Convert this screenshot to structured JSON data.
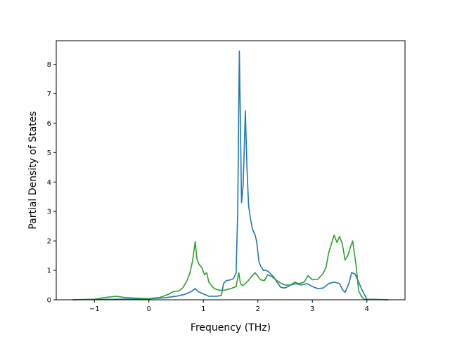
{
  "chart_data": {
    "type": "line",
    "title": "",
    "xlabel": "Frequency (THz)",
    "ylabel": "Partial Density of States",
    "xlim": [
      -1.7,
      4.7
    ],
    "ylim": [
      0,
      8.8
    ],
    "xticks": [
      -1,
      0,
      1,
      2,
      3,
      4
    ],
    "yticks": [
      0,
      1,
      2,
      3,
      4,
      5,
      6,
      7,
      8
    ],
    "grid": false,
    "legend": "none",
    "series": [
      {
        "color": "#1f77b4",
        "points": [
          [
            -1.4,
            0
          ],
          [
            -0.9,
            0.01
          ],
          [
            -0.5,
            0.02
          ],
          [
            0,
            0.03
          ],
          [
            0.3,
            0.07
          ],
          [
            0.5,
            0.12
          ],
          [
            0.65,
            0.18
          ],
          [
            0.78,
            0.28
          ],
          [
            0.85,
            0.38
          ],
          [
            0.9,
            0.28
          ],
          [
            1.0,
            0.2
          ],
          [
            1.1,
            0.12
          ],
          [
            1.25,
            0.12
          ],
          [
            1.33,
            0.15
          ],
          [
            1.37,
            0.55
          ],
          [
            1.42,
            0.65
          ],
          [
            1.5,
            0.68
          ],
          [
            1.55,
            0.72
          ],
          [
            1.6,
            0.9
          ],
          [
            1.63,
            3.0
          ],
          [
            1.66,
            8.45
          ],
          [
            1.68,
            6.0
          ],
          [
            1.7,
            3.3
          ],
          [
            1.73,
            3.9
          ],
          [
            1.77,
            6.42
          ],
          [
            1.8,
            4.5
          ],
          [
            1.83,
            3.2
          ],
          [
            1.86,
            2.8
          ],
          [
            1.9,
            2.4
          ],
          [
            1.95,
            2.2
          ],
          [
            1.98,
            1.95
          ],
          [
            2.02,
            1.3
          ],
          [
            2.05,
            1.15
          ],
          [
            2.1,
            1.0
          ],
          [
            2.15,
            1.0
          ],
          [
            2.2,
            0.95
          ],
          [
            2.25,
            0.85
          ],
          [
            2.3,
            0.75
          ],
          [
            2.35,
            0.6
          ],
          [
            2.42,
            0.42
          ],
          [
            2.5,
            0.4
          ],
          [
            2.55,
            0.45
          ],
          [
            2.6,
            0.5
          ],
          [
            2.7,
            0.55
          ],
          [
            2.8,
            0.5
          ],
          [
            2.9,
            0.55
          ],
          [
            3.0,
            0.45
          ],
          [
            3.1,
            0.38
          ],
          [
            3.2,
            0.4
          ],
          [
            3.3,
            0.55
          ],
          [
            3.4,
            0.6
          ],
          [
            3.5,
            0.55
          ],
          [
            3.55,
            0.35
          ],
          [
            3.6,
            0.25
          ],
          [
            3.67,
            0.55
          ],
          [
            3.72,
            0.92
          ],
          [
            3.78,
            0.88
          ],
          [
            3.85,
            0.6
          ],
          [
            3.92,
            0.3
          ],
          [
            4.0,
            0.02
          ],
          [
            4.4,
            0
          ]
        ]
      },
      {
        "color": "#2ca02c",
        "points": [
          [
            -1.4,
            0
          ],
          [
            -1.0,
            0.02
          ],
          [
            -0.9,
            0.05
          ],
          [
            -0.8,
            0.08
          ],
          [
            -0.6,
            0.12
          ],
          [
            -0.45,
            0.08
          ],
          [
            -0.3,
            0.06
          ],
          [
            0,
            0.04
          ],
          [
            0.2,
            0.08
          ],
          [
            0.35,
            0.18
          ],
          [
            0.45,
            0.28
          ],
          [
            0.55,
            0.3
          ],
          [
            0.62,
            0.4
          ],
          [
            0.7,
            0.65
          ],
          [
            0.75,
            0.9
          ],
          [
            0.8,
            1.3
          ],
          [
            0.85,
            1.98
          ],
          [
            0.88,
            1.4
          ],
          [
            0.92,
            1.2
          ],
          [
            0.97,
            1.1
          ],
          [
            1.02,
            0.85
          ],
          [
            1.06,
            0.92
          ],
          [
            1.1,
            0.6
          ],
          [
            1.15,
            0.48
          ],
          [
            1.2,
            0.38
          ],
          [
            1.3,
            0.32
          ],
          [
            1.4,
            0.33
          ],
          [
            1.5,
            0.38
          ],
          [
            1.6,
            0.45
          ],
          [
            1.65,
            0.92
          ],
          [
            1.68,
            0.55
          ],
          [
            1.72,
            0.48
          ],
          [
            1.8,
            0.6
          ],
          [
            1.88,
            0.78
          ],
          [
            1.95,
            0.92
          ],
          [
            2.0,
            0.8
          ],
          [
            2.05,
            0.68
          ],
          [
            2.12,
            0.65
          ],
          [
            2.18,
            0.85
          ],
          [
            2.25,
            0.8
          ],
          [
            2.3,
            0.72
          ],
          [
            2.4,
            0.58
          ],
          [
            2.5,
            0.5
          ],
          [
            2.6,
            0.5
          ],
          [
            2.68,
            0.6
          ],
          [
            2.75,
            0.55
          ],
          [
            2.85,
            0.6
          ],
          [
            2.92,
            0.82
          ],
          [
            3.0,
            0.68
          ],
          [
            3.1,
            0.7
          ],
          [
            3.2,
            0.9
          ],
          [
            3.25,
            1.1
          ],
          [
            3.3,
            1.6
          ],
          [
            3.35,
            1.9
          ],
          [
            3.4,
            2.2
          ],
          [
            3.45,
            1.95
          ],
          [
            3.5,
            2.15
          ],
          [
            3.55,
            1.9
          ],
          [
            3.6,
            1.35
          ],
          [
            3.65,
            1.5
          ],
          [
            3.7,
            1.8
          ],
          [
            3.74,
            2.0
          ],
          [
            3.8,
            1.2
          ],
          [
            3.85,
            0.3
          ],
          [
            3.9,
            0.12
          ],
          [
            3.95,
            0.02
          ],
          [
            4.4,
            0
          ]
        ]
      }
    ]
  }
}
